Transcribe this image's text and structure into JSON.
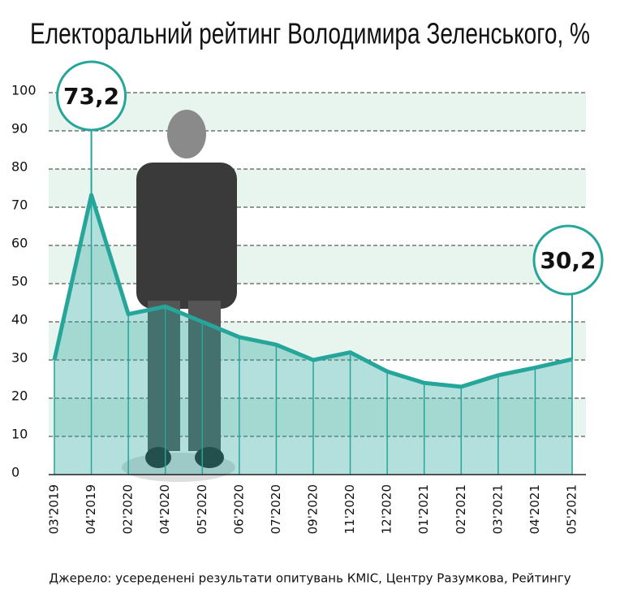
{
  "chart_data": {
    "type": "area",
    "title": "Електоральний рейтинг Володимира Зеленського, %",
    "source": "Джерело: усереденені результати опитувань КМІС, Центру Разумкова, Рейтингу",
    "categories": [
      "03'2019",
      "04'2019",
      "02'2020",
      "04'2020",
      "05'2020",
      "06'2020",
      "07'2020",
      "09'2020",
      "11'2020",
      "12'2020",
      "01'2021",
      "02'2021",
      "03'2021",
      "04'2021",
      "05'2021"
    ],
    "values": [
      30,
      73.2,
      42,
      44,
      40,
      36,
      34,
      30,
      32,
      27,
      24,
      23,
      26,
      28,
      30.2
    ],
    "value_labels": [
      null,
      "73,2",
      null,
      null,
      null,
      null,
      null,
      null,
      null,
      null,
      null,
      null,
      null,
      null,
      "30,2"
    ],
    "color": "#26a69a",
    "ylim": [
      0,
      100
    ],
    "yticks": [
      0,
      10,
      20,
      30,
      40,
      50,
      60,
      70,
      80,
      90,
      100
    ],
    "grid": true
  }
}
